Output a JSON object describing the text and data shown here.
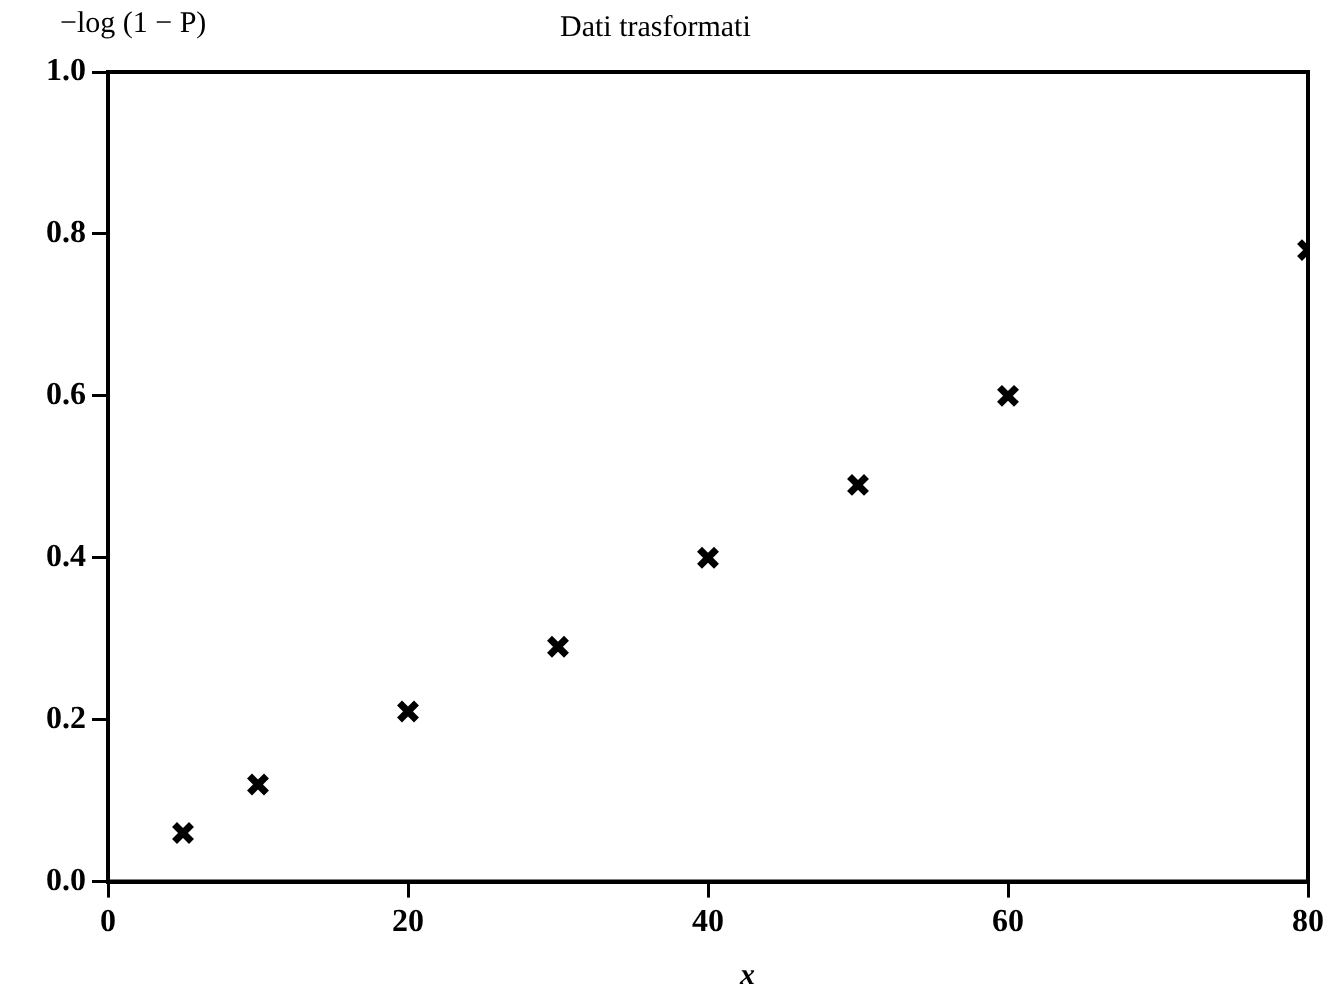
{
  "chart_data": {
    "type": "scatter",
    "title": "Dati trasformati",
    "xlabel": "x",
    "ylabel": "−log (1 − P)",
    "x": [
      5,
      10,
      20,
      30,
      40,
      50,
      60,
      80
    ],
    "series": [
      {
        "color": "#000000",
        "values": [
          0.06,
          0.12,
          0.21,
          0.29,
          0.4,
          0.49,
          0.6,
          0.78
        ]
      }
    ],
    "xlim": [
      0,
      80
    ],
    "xticks": [
      0,
      20,
      40,
      60,
      80
    ],
    "ylim": [
      0.0,
      1.0
    ],
    "yticks": [
      {
        "value": 0,
        "label": "0.0"
      },
      {
        "value": 0.2,
        "label": "0.2"
      },
      {
        "value": 0.4,
        "label": "0.4"
      },
      {
        "value": 0.6,
        "label": "0.6"
      },
      {
        "value": 0.8,
        "label": "0.8"
      },
      {
        "value": 1,
        "label": "1.0"
      }
    ],
    "grid": false,
    "legend": false,
    "marker": "cross"
  }
}
